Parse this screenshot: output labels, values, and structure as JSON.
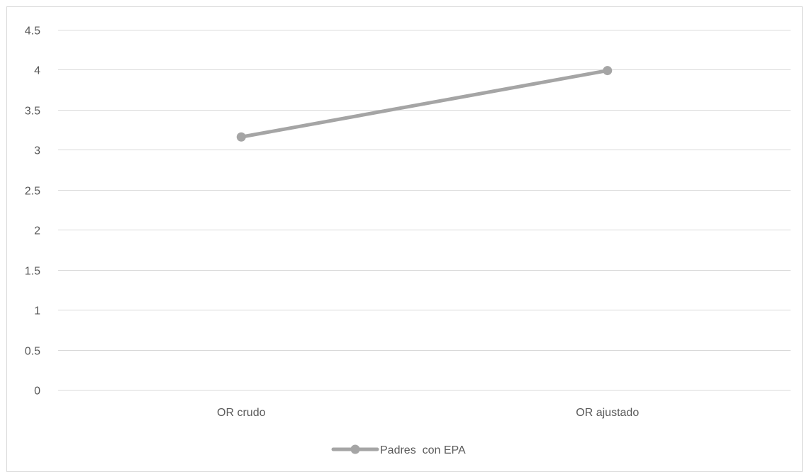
{
  "chart_data": {
    "type": "line",
    "title": "",
    "xlabel": "",
    "ylabel": "",
    "categories": [
      "OR crudo",
      "OR ajustado"
    ],
    "series": [
      {
        "name": "Padres  con EPA",
        "values": [
          3.16,
          3.99
        ]
      }
    ],
    "ylim": [
      0,
      4.5
    ],
    "y_ticks": [
      0,
      0.5,
      1,
      1.5,
      2,
      2.5,
      3,
      3.5,
      4,
      4.5
    ],
    "y_tick_labels": [
      "0",
      "0.5",
      "1",
      "1.5",
      "2",
      "2.5",
      "3",
      "3.5",
      "4",
      "4.5"
    ],
    "grid": true,
    "legend_position": "bottom",
    "colors": {
      "series": "#A5A5A5",
      "grid": "#D9D9D9",
      "border": "#D9D9D9",
      "text": "#595959"
    }
  }
}
